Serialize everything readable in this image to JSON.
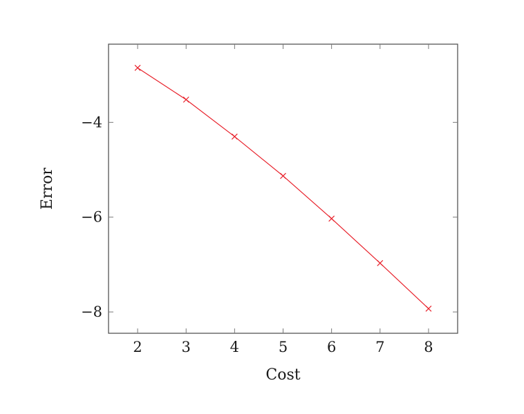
{
  "chart_data": {
    "type": "line",
    "title": "",
    "xlabel": "Cost",
    "ylabel": "Error",
    "xlim": [
      1.4,
      8.6
    ],
    "ylim": [
      -8.45,
      -2.35
    ],
    "x_ticks": [
      2,
      3,
      4,
      5,
      6,
      7,
      8
    ],
    "y_ticks": [
      -4,
      -6,
      -8
    ],
    "x_tick_labels": [
      "2",
      "3",
      "4",
      "5",
      "6",
      "7",
      "8"
    ],
    "y_tick_labels": [
      "−4",
      "−6",
      "−8"
    ],
    "grid": false,
    "legend": "none",
    "series": [
      {
        "color": "#e8202a",
        "marker": "x",
        "x": [
          2,
          3,
          4,
          5,
          6,
          7,
          8
        ],
        "y": [
          -2.85,
          -3.52,
          -4.3,
          -5.13,
          -6.03,
          -6.97,
          -7.93
        ]
      }
    ]
  }
}
